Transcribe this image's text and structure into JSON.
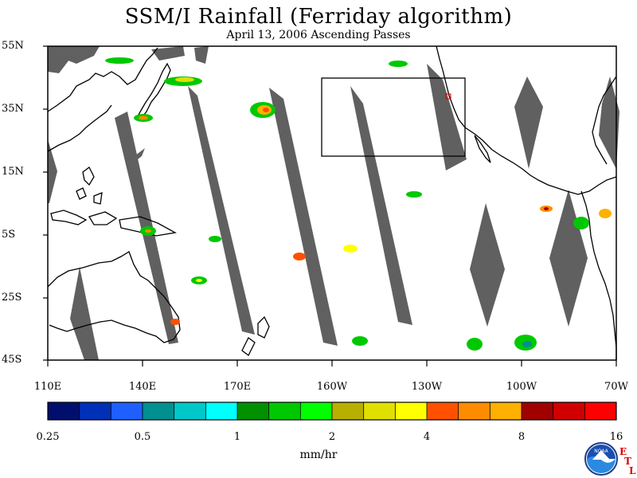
{
  "title": "SSM/I Rainfall (Ferriday algorithm)",
  "subtitle": "April 13, 2006  Ascending Passes",
  "lat_labels": [
    "55N",
    "35N",
    "15N",
    "5S",
    "25S",
    "45S"
  ],
  "lon_labels": [
    "110E",
    "140E",
    "170E",
    "160W",
    "130W",
    "100W",
    "70W"
  ],
  "colorbar": {
    "labels": [
      "0.25",
      "0.5",
      "1",
      "2",
      "4",
      "8",
      "16"
    ],
    "units": "mm/hr",
    "colors": [
      "#000f6e",
      "#0030b8",
      "#1f5fff",
      "#009090",
      "#00c8c8",
      "#00ffff",
      "#009000",
      "#00c800",
      "#00ff00",
      "#b8b000",
      "#e0e000",
      "#ffff00",
      "#ff5000",
      "#ff8c00",
      "#ffb000",
      "#a00000",
      "#d00000",
      "#ff0000"
    ]
  },
  "swath_color": "#606060",
  "box_color": "#000000",
  "logo_text": "NOAA",
  "lab_letters": [
    "E",
    "T",
    "L"
  ]
}
